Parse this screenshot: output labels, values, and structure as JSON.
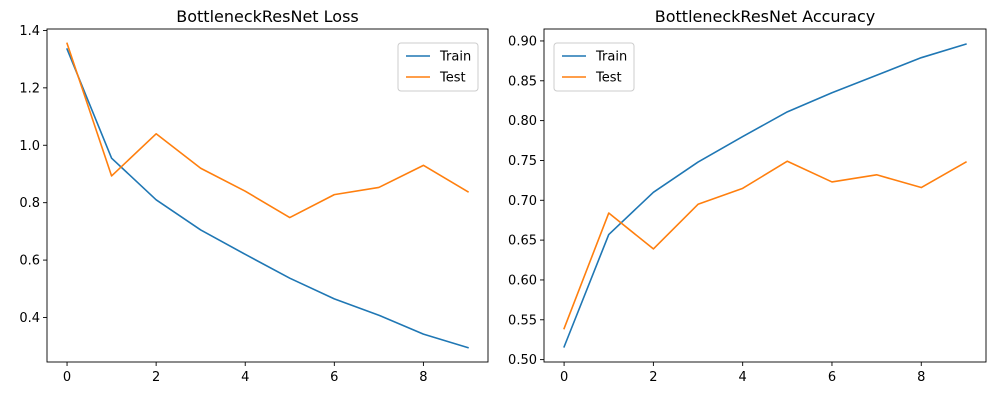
{
  "chart_data": [
    {
      "type": "line",
      "title": "BottleneckResNet Loss",
      "xlabel": "",
      "ylabel": "",
      "x": [
        0,
        1,
        2,
        3,
        4,
        5,
        6,
        7,
        8,
        9
      ],
      "xlim": [
        -0.45,
        9.45
      ],
      "ylim": [
        0.245,
        1.405
      ],
      "xticks": [
        0,
        2,
        4,
        6,
        8
      ],
      "yticks": [
        0.4,
        0.6,
        0.8,
        1.0,
        1.2,
        1.4
      ],
      "ytick_labels": [
        "0.4",
        "0.6",
        "0.8",
        "1.0",
        "1.2",
        "1.4"
      ],
      "grid": false,
      "legend_position": "top-right",
      "series": [
        {
          "name": "Train",
          "color": "#1f77b4",
          "values": [
            1.335,
            0.955,
            0.81,
            0.705,
            0.62,
            0.537,
            0.465,
            0.408,
            0.342,
            0.295
          ]
        },
        {
          "name": "Test",
          "color": "#ff7f0e",
          "values": [
            1.355,
            0.893,
            1.04,
            0.92,
            0.84,
            0.748,
            0.828,
            0.853,
            0.93,
            0.838
          ]
        }
      ]
    },
    {
      "type": "line",
      "title": "BottleneckResNet Accuracy",
      "xlabel": "",
      "ylabel": "",
      "x": [
        0,
        1,
        2,
        3,
        4,
        5,
        6,
        7,
        8,
        9
      ],
      "xlim": [
        -0.45,
        9.45
      ],
      "ylim": [
        0.497,
        0.915
      ],
      "xticks": [
        0,
        2,
        4,
        6,
        8
      ],
      "yticks": [
        0.5,
        0.55,
        0.6,
        0.65,
        0.7,
        0.75,
        0.8,
        0.85,
        0.9
      ],
      "ytick_labels": [
        "0.50",
        "0.55",
        "0.60",
        "0.65",
        "0.70",
        "0.75",
        "0.80",
        "0.85",
        "0.90"
      ],
      "grid": false,
      "legend_position": "top-left",
      "series": [
        {
          "name": "Train",
          "color": "#1f77b4",
          "values": [
            0.516,
            0.657,
            0.71,
            0.748,
            0.78,
            0.811,
            0.835,
            0.857,
            0.879,
            0.896
          ]
        },
        {
          "name": "Test",
          "color": "#ff7f0e",
          "values": [
            0.539,
            0.684,
            0.639,
            0.695,
            0.715,
            0.749,
            0.723,
            0.732,
            0.716,
            0.748
          ]
        }
      ]
    }
  ]
}
